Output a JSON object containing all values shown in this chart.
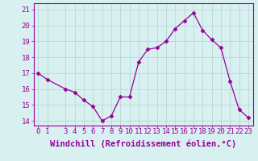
{
  "x": [
    0,
    1,
    3,
    4,
    5,
    6,
    7,
    8,
    9,
    10,
    11,
    12,
    13,
    14,
    15,
    16,
    17,
    18,
    19,
    20,
    21,
    22,
    23
  ],
  "y": [
    17.0,
    16.6,
    16.0,
    15.8,
    15.3,
    14.9,
    14.0,
    14.3,
    15.5,
    15.5,
    17.7,
    18.5,
    18.6,
    19.0,
    19.8,
    20.3,
    20.8,
    19.7,
    19.1,
    18.6,
    16.5,
    14.7,
    14.2
  ],
  "line_color": "#990099",
  "marker": "D",
  "marker_size": 2.5,
  "bg_color": "#d8f0f0",
  "grid_color": "#b8d8d8",
  "xlabel": "Windchill (Refroidissement éolien,°C)",
  "xlabel_fontsize": 7.5,
  "tick_fontsize": 6.5,
  "yticks": [
    14,
    15,
    16,
    17,
    18,
    19,
    20,
    21
  ],
  "xticks": [
    0,
    1,
    3,
    4,
    5,
    6,
    7,
    8,
    9,
    10,
    11,
    12,
    13,
    14,
    15,
    16,
    17,
    18,
    19,
    20,
    21,
    22,
    23
  ],
  "ylim": [
    13.7,
    21.4
  ],
  "xlim": [
    -0.5,
    23.5
  ]
}
